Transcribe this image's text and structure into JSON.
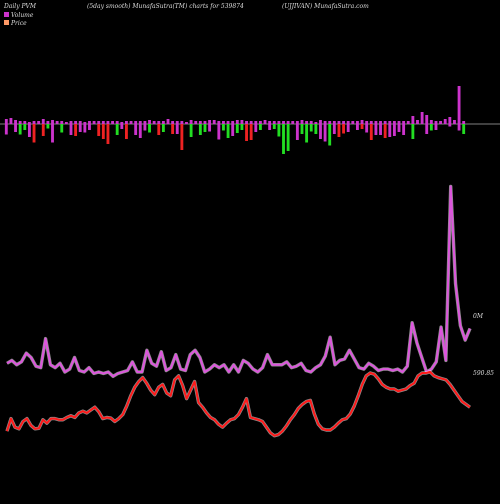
{
  "header": {
    "left": "Daily PVM",
    "center": "(5day smooth) MunafaSutra(TM) charts for 539874",
    "right": "(UJJIVAN) MunafaSutra.com"
  },
  "legend": [
    {
      "label": "Volume",
      "color": "#cc33cc"
    },
    {
      "label": "Price",
      "color": "#ff9966"
    }
  ],
  "colors": {
    "background": "#000000",
    "volume_line": "#dd55dd",
    "price_line": "#ff1a1a",
    "bar_up": "#cc33cc",
    "bar_down_red": "#ee2222",
    "bar_down_green": "#22dd22",
    "baseline": "#aaaaaa"
  },
  "chart_data": {
    "type": "bar+line",
    "bar_series": {
      "name": "Volume",
      "values": [
        -2.1,
        1.2,
        -1.6,
        -2.1,
        -1.2,
        -2.6,
        -3.7,
        1.2,
        -2.4,
        -0.9,
        -3.7,
        1.6,
        -1.7,
        0.8,
        -2.2,
        -2.4,
        -1.6,
        -1.7,
        -1.2,
        0.9,
        -2.4,
        -3.0,
        -4.0,
        1.4,
        -2.2,
        -1.0,
        -3.0,
        0.8,
        -2.2,
        -2.8,
        -1.3,
        -1.7,
        1.2,
        -2.2,
        -1.6,
        1.1,
        -2.0,
        -2.0,
        -5.2,
        1.7,
        -2.6,
        0.9,
        -2.2,
        -1.6,
        -1.5,
        2.2,
        -3.1,
        -1.3,
        -2.8,
        -2.4,
        -1.8,
        -1.2,
        -3.4,
        -3.2,
        -1.6,
        -1.2,
        2.5,
        -1.2,
        -1.0,
        -2.5,
        -6.0,
        -5.4,
        0.8,
        -3.2,
        -2.0,
        -3.7,
        -1.5,
        -2.0,
        -3.0,
        -3.5,
        -4.3,
        -2.0,
        -2.6,
        -1.9,
        -1.6,
        0.8,
        -1.2,
        -1.0,
        -1.7,
        -3.2,
        -2.2,
        -2.2,
        -2.8,
        -2.6,
        -2.4,
        -1.6,
        -2.2,
        2.7,
        -3.0,
        3.4,
        2.9,
        -2.0,
        -1.3,
        -1.2,
        1.7,
        1.8,
        -0.5,
        3.8,
        -1.3,
        -2.0
      ],
      "colors": [
        "purple",
        "purple",
        "purple",
        "green",
        "green",
        "purple",
        "red",
        "purple",
        "red",
        "green",
        "purple",
        "purple",
        "green",
        "purple",
        "purple",
        "red",
        "purple",
        "purple",
        "purple",
        "purple",
        "red",
        "red",
        "red",
        "purple",
        "green",
        "purple",
        "red",
        "purple",
        "purple",
        "purple",
        "purple",
        "green",
        "purple",
        "red",
        "green",
        "purple",
        "red",
        "purple",
        "red",
        "purple",
        "green",
        "purple",
        "green",
        "green",
        "purple",
        "purple",
        "purple",
        "green",
        "green",
        "purple",
        "green",
        "green",
        "red",
        "red",
        "purple",
        "green",
        "purple",
        "purple",
        "green",
        "green",
        "green",
        "green",
        "purple",
        "purple",
        "green",
        "green",
        "green",
        "green",
        "purple",
        "purple",
        "green",
        "purple",
        "red",
        "red",
        "purple",
        "purple",
        "purple",
        "red",
        "purple",
        "red",
        "purple",
        "purple",
        "red",
        "purple",
        "purple",
        "purple",
        "purple",
        "purple",
        "green",
        "purple",
        "green",
        "purple",
        "green",
        "purple",
        "purple",
        "purple",
        "purple",
        "purple",
        "purple",
        "green"
      ],
      "up_heights": [
        5,
        6,
        4,
        3,
        3,
        2,
        3,
        3,
        5,
        3,
        4,
        3,
        3,
        2,
        3,
        3,
        3,
        2,
        3,
        3,
        3,
        3,
        3,
        3,
        3,
        2,
        3,
        3,
        3,
        3,
        3,
        4,
        3,
        3,
        3,
        5,
        3,
        3,
        3,
        2,
        4,
        3,
        3,
        3,
        4,
        4,
        3,
        3,
        3,
        3,
        4,
        4,
        3,
        3,
        3,
        3,
        4,
        3,
        3,
        3,
        3,
        3,
        3,
        3,
        4,
        3,
        3,
        2,
        4,
        3,
        3,
        3,
        3,
        3,
        3,
        3,
        3,
        4,
        3,
        3,
        3,
        3,
        3,
        3,
        3,
        3,
        3,
        3,
        8,
        4,
        12,
        9,
        4,
        3,
        3,
        5,
        7,
        4,
        38,
        3,
        26
      ]
    },
    "volume_line": {
      "name": "Volume",
      "end_label": "0M",
      "values": [
        0.06,
        0.08,
        0.05,
        0.07,
        0.13,
        0.1,
        0.04,
        0.03,
        0.23,
        0.05,
        0.03,
        0.06,
        0.0,
        0.02,
        0.1,
        0.01,
        0.0,
        0.03,
        -0.01,
        0.0,
        -0.01,
        0.0,
        -0.03,
        -0.01,
        0.0,
        0.01,
        0.07,
        0.0,
        0.0,
        0.15,
        0.06,
        0.04,
        0.14,
        0.01,
        0.03,
        0.12,
        0.02,
        0.01,
        0.12,
        0.15,
        0.1,
        0.0,
        0.02,
        0.05,
        0.03,
        0.05,
        0.0,
        0.05,
        0.0,
        0.08,
        0.06,
        0.02,
        0.0,
        0.03,
        0.12,
        0.05,
        0.05,
        0.05,
        0.07,
        0.03,
        0.04,
        0.06,
        0.01,
        0.0,
        0.03,
        0.05,
        0.11,
        0.24,
        0.05,
        0.08,
        0.09,
        0.15,
        0.09,
        0.03,
        0.02,
        0.06,
        0.04,
        0.01,
        0.02,
        0.02,
        0.01,
        0.02,
        0.0,
        0.04,
        0.34,
        0.2,
        0.1,
        0.0,
        0.02,
        0.07,
        0.31,
        0.08,
        1.28,
        0.61,
        0.32,
        0.22,
        0.3
      ]
    },
    "price_line": {
      "name": "Price",
      "end_label": "590.85",
      "values": [
        -0.02,
        0.2,
        0.05,
        0.02,
        0.15,
        0.2,
        0.08,
        0.02,
        0.03,
        0.18,
        0.12,
        0.2,
        0.2,
        0.18,
        0.18,
        0.22,
        0.25,
        0.22,
        0.3,
        0.33,
        0.3,
        0.35,
        0.4,
        0.32,
        0.2,
        0.22,
        0.21,
        0.15,
        0.2,
        0.27,
        0.42,
        0.6,
        0.75,
        0.85,
        0.92,
        0.82,
        0.7,
        0.62,
        0.75,
        0.8,
        0.65,
        0.6,
        0.88,
        0.95,
        0.78,
        0.55,
        0.7,
        0.85,
        0.48,
        0.4,
        0.3,
        0.22,
        0.18,
        0.1,
        0.05,
        0.12,
        0.18,
        0.2,
        0.27,
        0.4,
        0.55,
        0.22,
        0.2,
        0.18,
        0.15,
        0.05,
        -0.05,
        -0.1,
        -0.08,
        -0.02,
        0.07,
        0.18,
        0.27,
        0.38,
        0.45,
        0.5,
        0.52,
        0.28,
        0.1,
        0.02,
        0.0,
        0.0,
        0.05,
        0.12,
        0.18,
        0.2,
        0.28,
        0.42,
        0.6,
        0.8,
        0.95,
        1.0,
        0.98,
        0.9,
        0.8,
        0.75,
        0.72,
        0.72,
        0.68,
        0.7,
        0.72,
        0.78,
        0.82,
        0.95,
        1.0,
        1.0,
        1.02,
        0.95,
        0.92,
        0.9,
        0.88,
        0.8,
        0.7,
        0.6,
        0.5,
        0.45,
        0.4
      ]
    }
  }
}
